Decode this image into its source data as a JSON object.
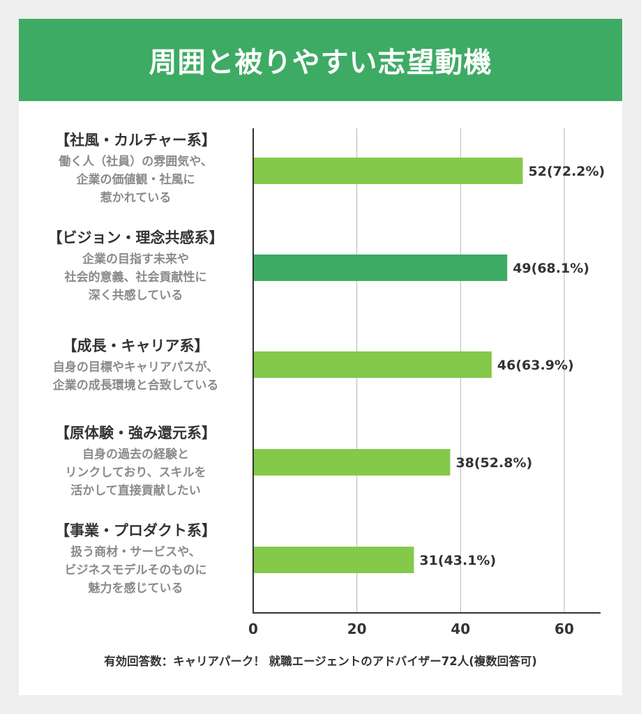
{
  "title": "周囲と被りやすい志望動機",
  "categories_detail": [
    {
      "title": "【社風・カルチャー系】",
      "desc": "働く人（社員）の雰囲気や、\n企業の価値観・社風に\n惹かれている"
    },
    {
      "title": "【ビジョン・理念共感系】",
      "desc": "企業の目指す未来や\n社会的意義、社会貢献性に\n深く共感している"
    },
    {
      "title": "【成長・キャリア系】",
      "desc": "自身の目標やキャリアパスが、\n企業の成長環境と合致している"
    },
    {
      "title": "【原体験・強み還元系】",
      "desc": "自身の過去の経験と\nリンクしており、スキルを\n活かして直接貢献したい"
    },
    {
      "title": "【事業・プロダクト系】",
      "desc": "扱う商材・サービスや、\nビジネスモデルそのものに\n魅力を感じている"
    }
  ],
  "chart_data": {
    "type": "bar",
    "orientation": "horizontal",
    "categories": [
      "【社風・カルチャー系】",
      "【ビジョン・理念共感系】",
      "【成長・キャリア系】",
      "【原体験・強み還元系】",
      "【事業・プロダクト系】"
    ],
    "values": [
      52,
      49,
      46,
      38,
      31
    ],
    "data_labels": [
      "52(72.2%)",
      "49(68.1%)",
      "46(63.9%)",
      "38(52.8%)",
      "31(43.1%)"
    ],
    "xlim": [
      0,
      67
    ],
    "x_ticks": [
      0,
      20,
      40,
      60
    ],
    "grid": true,
    "colors": [
      "#84c94a",
      "#3dab63",
      "#84c94a",
      "#84c94a",
      "#84c94a"
    ]
  },
  "footer": "有効回答数：キャリアパーク！ 就職エージェントのアドバイザー72人(複数回答可)"
}
